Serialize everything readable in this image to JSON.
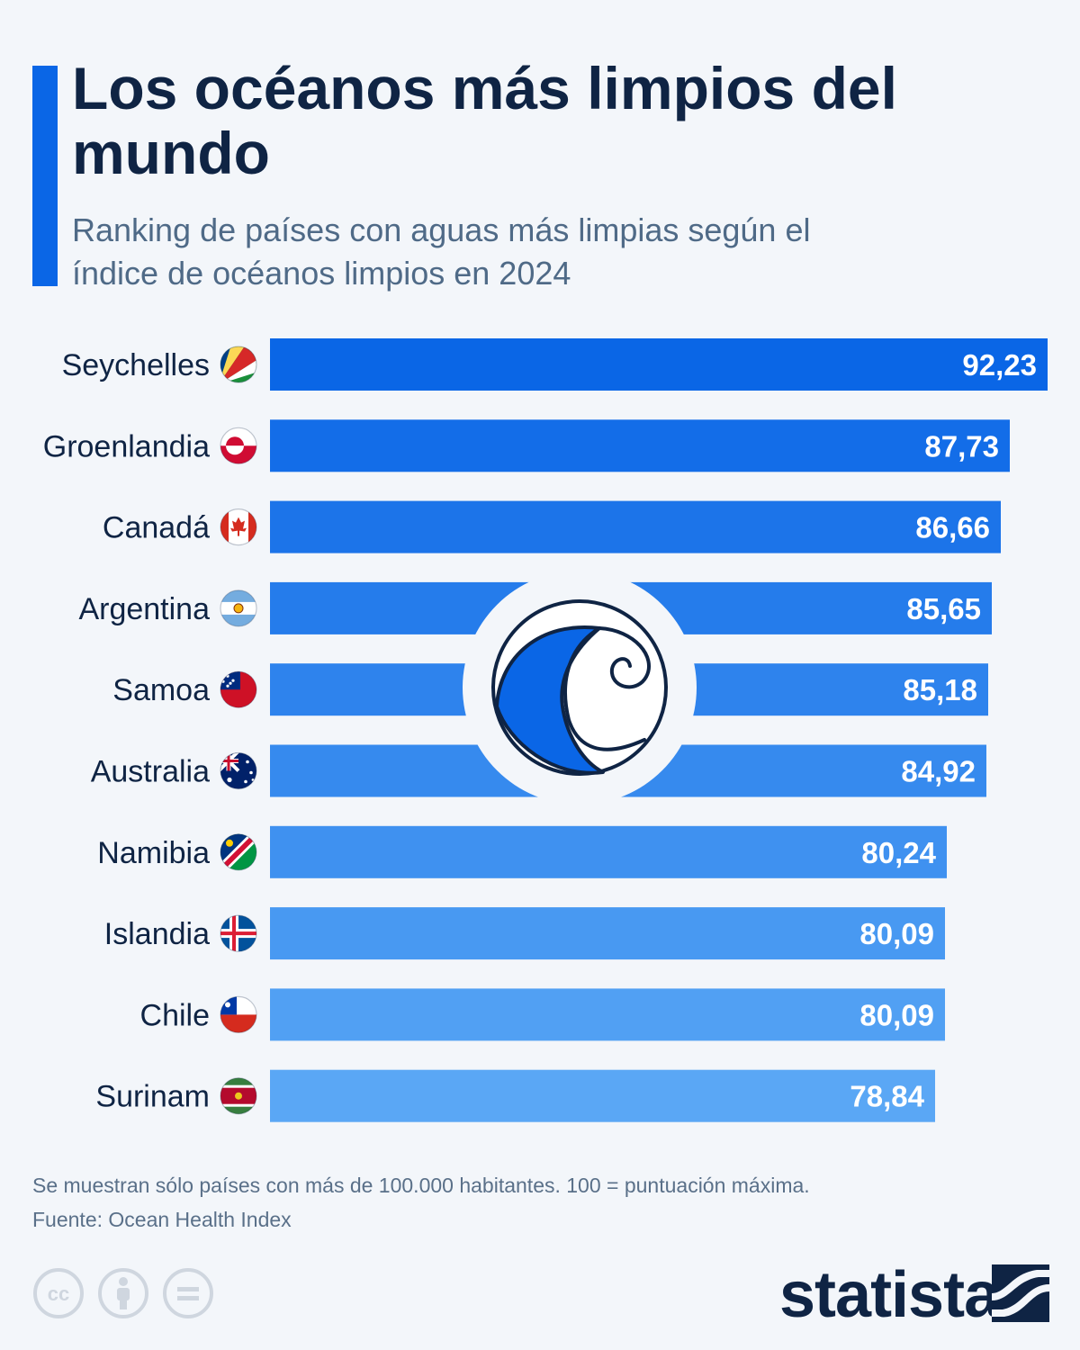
{
  "header": {
    "title": "Los océanos más limpios del mundo",
    "subtitle": "Ranking de países con aguas más limpias según el índice de océanos limpios en 2024"
  },
  "colors": {
    "accent": "#0a66e6",
    "bar_top": "#0a66e6",
    "bar_bottom": "#5aa7f5",
    "text_dark": "#0f2444"
  },
  "chart_data": {
    "type": "bar",
    "orientation": "horizontal",
    "title": "Los océanos más limpios del mundo",
    "categories": [
      "Seychelles",
      "Groenlandia",
      "Canadá",
      "Argentina",
      "Samoa",
      "Australia",
      "Namibia",
      "Islandia",
      "Chile",
      "Surinam"
    ],
    "values": [
      92.23,
      87.73,
      86.66,
      85.65,
      85.18,
      84.92,
      80.24,
      80.09,
      80.09,
      78.84
    ],
    "value_labels": [
      "92,23",
      "87,73",
      "86,66",
      "85,65",
      "85,18",
      "84,92",
      "80,24",
      "80,09",
      "80,09",
      "78,84"
    ],
    "flag_icons": [
      "seychelles-flag-icon",
      "greenland-flag-icon",
      "canada-flag-icon",
      "argentina-flag-icon",
      "samoa-flag-icon",
      "australia-flag-icon",
      "namibia-flag-icon",
      "iceland-flag-icon",
      "chile-flag-icon",
      "suriname-flag-icon"
    ],
    "xlim": [
      0,
      92.23
    ],
    "xlabel": "",
    "ylabel": "",
    "grid": false
  },
  "footer": {
    "note": "Se muestran sólo países con más de 100.000 habitantes. 100 = puntuación máxima.",
    "source": "Fuente: Ocean Health Index",
    "brand": "statista",
    "license_icons": [
      "cc-icon",
      "attribution-icon",
      "no-derivatives-icon"
    ],
    "wave_icon": "ocean-wave-icon"
  }
}
